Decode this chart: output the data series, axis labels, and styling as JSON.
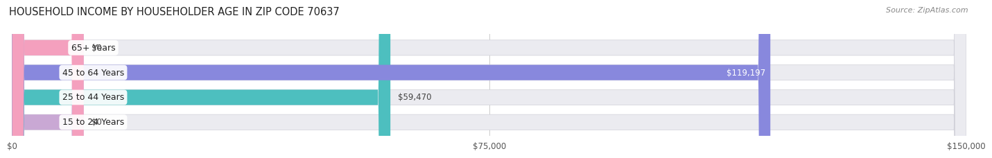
{
  "title": "HOUSEHOLD INCOME BY HOUSEHOLDER AGE IN ZIP CODE 70637",
  "source": "Source: ZipAtlas.com",
  "categories": [
    "15 to 24 Years",
    "25 to 44 Years",
    "45 to 64 Years",
    "65+ Years"
  ],
  "values": [
    0,
    59470,
    119197,
    0
  ],
  "bar_colors": [
    "#c9a8d4",
    "#4dbfbf",
    "#8888dd",
    "#f4a0be"
  ],
  "value_labels": [
    "$0",
    "$59,470",
    "$119,197",
    "$0"
  ],
  "xlim": [
    0,
    150000
  ],
  "xtick_values": [
    0,
    75000,
    150000
  ],
  "xtick_labels": [
    "$0",
    "$75,000",
    "$150,000"
  ],
  "bar_height": 0.62,
  "bar_bg_color": "#ebebf0",
  "fig_bg_color": "#ffffff",
  "title_fontsize": 10.5,
  "label_fontsize": 9,
  "value_fontsize": 8.5,
  "source_fontsize": 8
}
